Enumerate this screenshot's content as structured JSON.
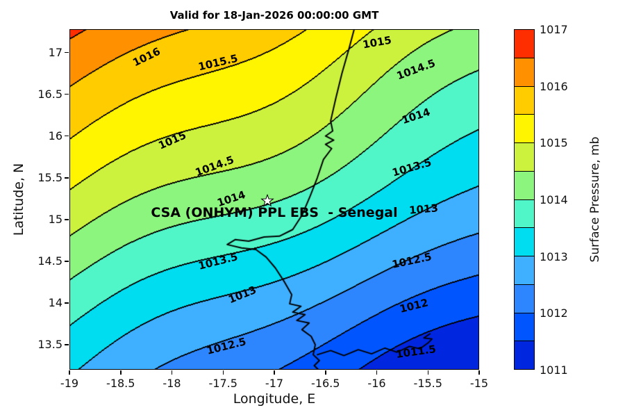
{
  "title": "Valid for 18-Jan-2026 00:00:00 GMT",
  "chart_data": {
    "type": "heatmap",
    "subtype": "filled-contour-map",
    "title": "Valid for 18-Jan-2026 00:00:00 GMT",
    "xlabel": "Longitude, E",
    "ylabel": "Latitude, N",
    "colorbar_label": "Surface Pressure, mb",
    "units": "mb",
    "xlim": [
      -19,
      -15
    ],
    "ylim": [
      13.2,
      17.28
    ],
    "xticks": [
      -19,
      -18.5,
      -18,
      -17.5,
      -17,
      -16.5,
      -16,
      -15.5,
      -15
    ],
    "yticks": [
      17,
      16.5,
      16,
      15.5,
      15,
      14.5,
      14,
      13.5
    ],
    "contour_interval_mb": 0.5,
    "pressure_range_mb": [
      1011,
      1017
    ],
    "colorbar_ticks": [
      1011,
      1012,
      1013,
      1014,
      1015,
      1016,
      1017
    ],
    "band_colors": [
      "#0026E0",
      "#0055FF",
      "#2E86FF",
      "#3FAFFF",
      "#00DCF0",
      "#50F5C8",
      "#8CF57D",
      "#CCF23D",
      "#FFF500",
      "#FFCC00",
      "#FF9000",
      "#FF2E00"
    ],
    "field_model": {
      "p0": 991.592,
      "lat_coeff": 0.88,
      "lon_coeff": -0.52,
      "wiggles": [
        {
          "amp": 0.1,
          "freq": 2.2,
          "phase": 1.0,
          "var": "lon"
        },
        {
          "amp": 0.08,
          "freq": 1.7,
          "phase": 0.6,
          "var": "lat"
        },
        {
          "amp": 0.06,
          "freq": 1.1,
          "phase": 2.2,
          "var": "sum"
        }
      ]
    },
    "contour_labels": [
      {
        "text": "1016",
        "lon": -18.25,
        "lat": 16.95,
        "rot": -26
      },
      {
        "text": "1015.5",
        "lon": -17.55,
        "lat": 16.88,
        "rot": -13
      },
      {
        "text": "1015",
        "lon": -16.0,
        "lat": 17.12,
        "rot": -10
      },
      {
        "text": "1014.5",
        "lon": -15.62,
        "lat": 16.8,
        "rot": -20
      },
      {
        "text": "1014",
        "lon": -15.62,
        "lat": 16.24,
        "rot": -18
      },
      {
        "text": "1015",
        "lon": -18.0,
        "lat": 15.95,
        "rot": -24
      },
      {
        "text": "1014.5",
        "lon": -17.58,
        "lat": 15.64,
        "rot": -20
      },
      {
        "text": "1014",
        "lon": -17.42,
        "lat": 15.25,
        "rot": -18
      },
      {
        "text": "1013.5",
        "lon": -15.66,
        "lat": 15.62,
        "rot": -16
      },
      {
        "text": "1013",
        "lon": -15.54,
        "lat": 15.12,
        "rot": -5
      },
      {
        "text": "1013.5",
        "lon": -17.55,
        "lat": 14.5,
        "rot": -14
      },
      {
        "text": "1013",
        "lon": -17.31,
        "lat": 14.1,
        "rot": -22
      },
      {
        "text": "1012.5",
        "lon": -15.66,
        "lat": 14.51,
        "rot": -12
      },
      {
        "text": "1012",
        "lon": -15.64,
        "lat": 13.97,
        "rot": -14
      },
      {
        "text": "1012.5",
        "lon": -17.47,
        "lat": 13.48,
        "rot": -14
      },
      {
        "text": "1011.5",
        "lon": -15.62,
        "lat": 13.42,
        "rot": -8
      }
    ],
    "annotation": {
      "text": "CSA (ONHYM) PPL EBS  - Senegal",
      "lon": -17.0,
      "lat": 15.08
    },
    "marker": {
      "type": "pentagram",
      "fill": "#ffffff",
      "edge": "#000000",
      "lon": -17.07,
      "lat": 15.22
    },
    "coastline": [
      [
        -16.22,
        17.28
      ],
      [
        -16.27,
        17.05
      ],
      [
        -16.34,
        16.75
      ],
      [
        -16.4,
        16.45
      ],
      [
        -16.45,
        16.18
      ],
      [
        -16.43,
        16.06
      ],
      [
        -16.5,
        16.0
      ],
      [
        -16.42,
        15.95
      ],
      [
        -16.5,
        15.9
      ],
      [
        -16.44,
        15.85
      ],
      [
        -16.52,
        15.72
      ],
      [
        -16.58,
        15.5
      ],
      [
        -16.65,
        15.28
      ],
      [
        -16.73,
        15.05
      ],
      [
        -16.82,
        14.88
      ],
      [
        -16.95,
        14.8
      ],
      [
        -17.1,
        14.79
      ],
      [
        -17.25,
        14.74
      ],
      [
        -17.38,
        14.76
      ],
      [
        -17.46,
        14.7
      ],
      [
        -17.32,
        14.66
      ],
      [
        -17.18,
        14.64
      ],
      [
        -17.08,
        14.55
      ],
      [
        -16.99,
        14.42
      ],
      [
        -16.9,
        14.25
      ],
      [
        -16.83,
        14.1
      ],
      [
        -16.85,
        13.99
      ],
      [
        -16.74,
        13.96
      ],
      [
        -16.82,
        13.89
      ],
      [
        -16.7,
        13.86
      ],
      [
        -16.78,
        13.79
      ],
      [
        -16.66,
        13.76
      ],
      [
        -16.73,
        13.68
      ],
      [
        -16.64,
        13.6
      ],
      [
        -16.6,
        13.5
      ],
      [
        -16.62,
        13.38
      ],
      [
        -16.56,
        13.31
      ],
      [
        -16.61,
        13.25
      ],
      [
        -16.57,
        13.2
      ]
    ],
    "river": [
      [
        -16.58,
        13.38
      ],
      [
        -16.45,
        13.43
      ],
      [
        -16.32,
        13.37
      ],
      [
        -16.18,
        13.44
      ],
      [
        -16.05,
        13.39
      ],
      [
        -15.92,
        13.46
      ],
      [
        -15.8,
        13.41
      ],
      [
        -15.68,
        13.48
      ],
      [
        -15.58,
        13.45
      ],
      [
        -15.5,
        13.52
      ],
      [
        -15.46,
        13.57
      ],
      [
        -15.54,
        13.58
      ],
      [
        -15.48,
        13.63
      ]
    ]
  }
}
